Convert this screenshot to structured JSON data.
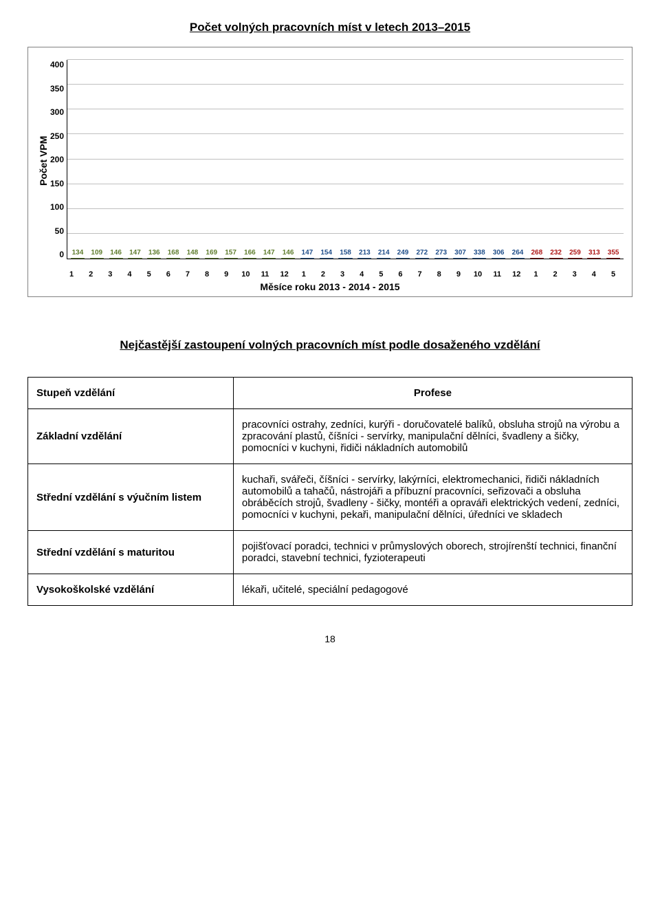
{
  "chart": {
    "title": "Počet volných pracovních míst v letech 2013–2015",
    "y_label": "Počet VPM",
    "x_label": "Měsíce roku 2013 - 2014 - 2015",
    "ylim_max": 400,
    "y_ticks": [
      400,
      350,
      300,
      250,
      200,
      150,
      100,
      50,
      0
    ],
    "grid_color": "#bfbfbf",
    "background": "#ffffff",
    "groups": [
      {
        "fill": "linear-gradient(to bottom,#c8e29a,#8fb84e)",
        "border": "#6a8c3a",
        "value_color": "#5f7d2e",
        "labels": [
          "1",
          "2",
          "3",
          "4",
          "5",
          "6",
          "7",
          "8",
          "9",
          "10",
          "11",
          "12"
        ],
        "values": [
          134,
          109,
          146,
          147,
          136,
          168,
          148,
          169,
          157,
          166,
          147,
          146
        ]
      },
      {
        "fill": "linear-gradient(to bottom,#a9cdf0,#4f87c6)",
        "border": "#2f5e94",
        "value_color": "#1f4e8a",
        "labels": [
          "1",
          "2",
          "3",
          "4",
          "5",
          "6",
          "7",
          "8",
          "9",
          "10",
          "11",
          "12"
        ],
        "values": [
          147,
          154,
          158,
          213,
          214,
          249,
          272,
          273,
          307,
          338,
          306,
          264
        ]
      },
      {
        "fill": "linear-gradient(to bottom,#f08a8a,#c62020)",
        "border": "#8a1515",
        "value_color": "#b01818",
        "labels": [
          "1",
          "2",
          "3",
          "4",
          "5"
        ],
        "values": [
          268,
          232,
          259,
          313,
          355
        ]
      }
    ]
  },
  "section_title": "Nejčastější zastoupení volných pracovních míst podle dosaženého vzdělání",
  "table": {
    "head_left": "Stupeň vzdělání",
    "head_right": "Profese",
    "rows": [
      {
        "left": "Základní vzdělání",
        "right": "pracovníci ostrahy, zedníci, kurýři - doručovatelé balíků, obsluha strojů na výrobu a zpracování plastů, číšníci - servírky, manipulační dělníci, švadleny a šičky, pomocníci v kuchyni, řidiči nákladních automobilů"
      },
      {
        "left": "Střední vzdělání s výučním listem",
        "right": "kuchaři, svářeči, číšníci - servírky, lakýrníci, elektromechanici, řidiči nákladních automobilů a tahačů, nástrojáři a příbuzní pracovníci, seřizovači a obsluha obráběcích strojů, švadleny - šičky, montéři a opraváři elektrických vedení, zedníci, pomocníci v kuchyni, pekaři, manipulační dělníci, úředníci ve skladech"
      },
      {
        "left": "Střední vzdělání s maturitou",
        "right": "pojišťovací poradci, technici v průmyslových oborech, strojírenští technici, finanční poradci, stavební technici, fyzioterapeuti"
      },
      {
        "left": "Vysokoškolské vzdělání",
        "right": "lékaři, učitelé, speciální pedagogové"
      }
    ]
  },
  "page_number": "18"
}
